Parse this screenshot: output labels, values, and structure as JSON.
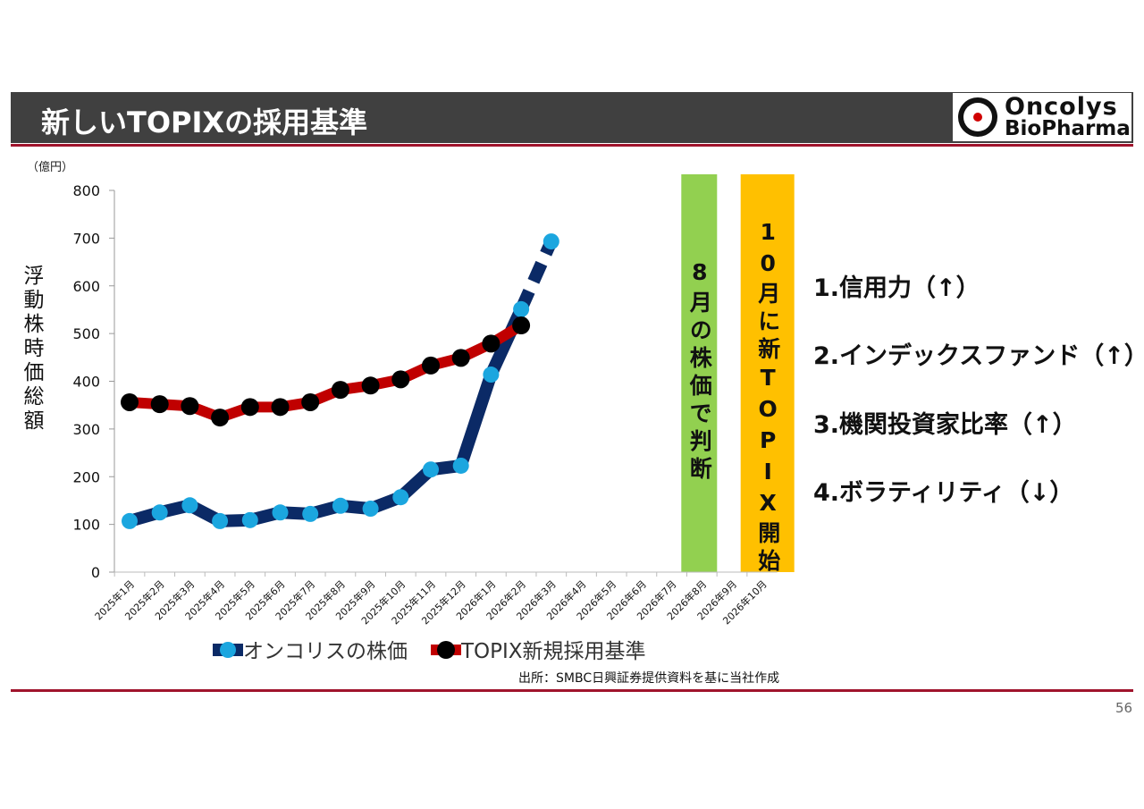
{
  "header": {
    "title": "新しいTOPIXの採用基準",
    "logo": [
      "Oncolys",
      "BioPharma"
    ]
  },
  "chart_data": {
    "type": "line",
    "y_unit": "（億円）",
    "ylabel": "浮動株時価総額",
    "categories": [
      "2025年1月",
      "2025年2月",
      "2025年3月",
      "2025年4月",
      "2025年5月",
      "2025年6月",
      "2025年7月",
      "2025年8月",
      "2025年9月",
      "2025年10月",
      "2025年11月",
      "2025年12月",
      "2026年1月",
      "2026年2月",
      "2026年3月",
      "2026年4月",
      "2026年5月",
      "2026年6月",
      "2026年7月",
      "2026年8月",
      "2026年9月",
      "2026年10月"
    ],
    "series": [
      {
        "name": "オンコリスの株価",
        "color": "#0b2a66",
        "marker_color": "#1ba6df",
        "values": [
          107,
          125,
          140,
          107,
          109,
          125,
          122,
          139,
          133,
          157,
          215,
          223,
          414,
          551,
          693,
          null,
          null,
          null,
          null,
          null,
          null,
          null
        ]
      },
      {
        "name": "TOPIX新規採用基準",
        "color": "#c00000",
        "marker_color": "#000000",
        "values": [
          356,
          352,
          348,
          324,
          346,
          346,
          356,
          382,
          391,
          404,
          433,
          449,
          479,
          517,
          null,
          null,
          null,
          null,
          null,
          null,
          null,
          null
        ]
      }
    ],
    "ylim": [
      0,
      800
    ],
    "yticks": [
      0,
      100,
      200,
      300,
      400,
      500,
      600,
      700,
      800
    ],
    "grid": false,
    "annotations": [
      {
        "text": "8月の株価で判断",
        "category": "2026年8月",
        "color": "#92d050"
      },
      {
        "text": "10月に新TOPIX開始",
        "category": "2026年10月",
        "color": "#ffc000"
      }
    ]
  },
  "criteria": [
    "1.信用力（↑）",
    "2.インデックスファンド（↑）",
    "3.機関投資家比率（↑）",
    "4.ボラティリティ（↓）"
  ],
  "source": "出所：SMBC日興証券提供資料を基に当社作成",
  "page_number": "56"
}
